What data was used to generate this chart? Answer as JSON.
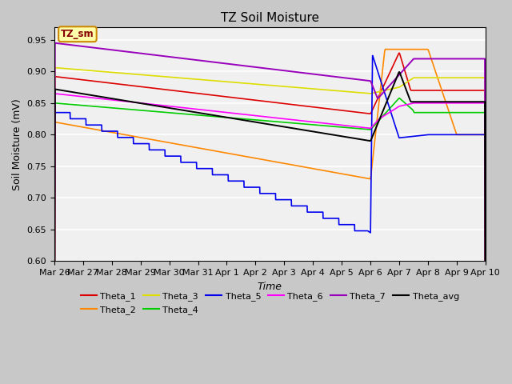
{
  "title": "TZ Soil Moisture",
  "xlabel": "Time",
  "ylabel": "Soil Moisture (mV)",
  "ylim": [
    0.6,
    0.97
  ],
  "yticks": [
    0.6,
    0.65,
    0.7,
    0.75,
    0.8,
    0.85,
    0.9,
    0.95
  ],
  "annotation_label": "TZ_sm",
  "annotation_bg": "#ffffaa",
  "annotation_border": "#cc8800",
  "annotation_text_color": "#880000",
  "line_colors": {
    "Theta_1": "#dd0000",
    "Theta_2": "#ff8800",
    "Theta_3": "#dddd00",
    "Theta_4": "#00cc00",
    "Theta_5": "#0000ee",
    "Theta_6": "#ff00ff",
    "Theta_7": "#9900bb",
    "Theta_avg": "#000000"
  },
  "x_tick_labels": [
    "Mar 26",
    "Mar 27",
    "Mar 28",
    "Mar 29",
    "Mar 30",
    "Mar 31",
    "Apr 1",
    "Apr 2",
    "Apr 3",
    "Apr 4",
    "Apr 5",
    "Apr 6",
    "Apr 7",
    "Apr 8",
    "Apr 9",
    "Apr 10"
  ],
  "fig_facecolor": "#c8c8c8",
  "ax_facecolor": "#f0f0f0",
  "grid_color": "#ffffff"
}
